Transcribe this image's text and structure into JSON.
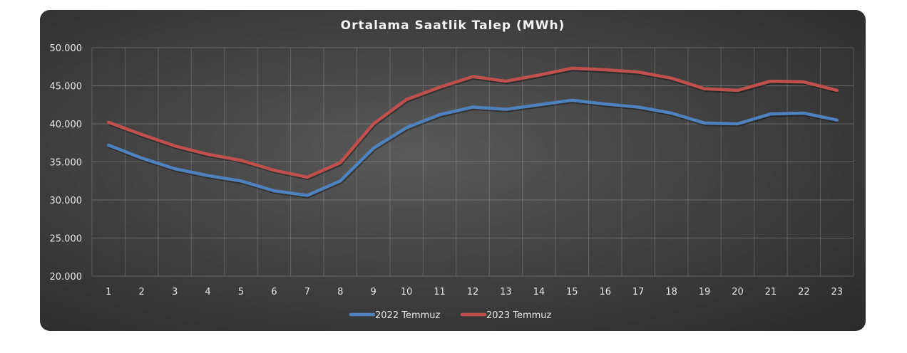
{
  "chart_data": {
    "type": "line",
    "title": "Ortalama Saatlik Talep (MWh)",
    "categories": [
      "1",
      "2",
      "3",
      "4",
      "5",
      "6",
      "7",
      "8",
      "9",
      "10",
      "11",
      "12",
      "13",
      "14",
      "15",
      "16",
      "17",
      "18",
      "19",
      "20",
      "21",
      "22",
      "23"
    ],
    "ylim": [
      20000,
      50000
    ],
    "yticks": [
      "20.000",
      "25.000",
      "30.000",
      "35.000",
      "40.000",
      "45.000",
      "50.000"
    ],
    "grid": true,
    "legend": "bottom",
    "series": [
      {
        "name": "2022 Temmuz",
        "color": "#4f81bd",
        "values": [
          37200,
          35500,
          34100,
          33200,
          32500,
          31200,
          30600,
          32500,
          36800,
          39500,
          41200,
          42200,
          41900,
          42500,
          43100,
          42600,
          42200,
          41400,
          40100,
          40000,
          41300,
          41400,
          40500
        ]
      },
      {
        "name": "2023 Temmuz",
        "color": "#c0504d",
        "values": [
          40200,
          38600,
          37100,
          36000,
          35200,
          33900,
          33000,
          34900,
          40000,
          43200,
          44800,
          46200,
          45600,
          46400,
          47300,
          47100,
          46800,
          46000,
          44600,
          44400,
          45600,
          45500,
          44400
        ]
      }
    ]
  }
}
